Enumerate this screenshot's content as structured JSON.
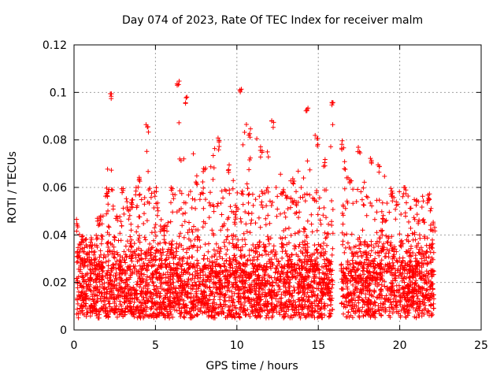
{
  "chart_data": {
    "type": "scatter",
    "title": "Day 074 of 2023, Rate Of TEC Index for receiver malm",
    "xlabel": "GPS time / hours",
    "ylabel": "ROTI / TECUs",
    "xlim": [
      0,
      25
    ],
    "ylim": [
      0,
      0.12
    ],
    "x_ticks": [
      "0",
      "5",
      "10",
      "15",
      "20",
      "25"
    ],
    "y_ticks": [
      "0",
      "0.02",
      "0.04",
      "0.06",
      "0.08",
      "0.1",
      "0.12"
    ],
    "grid": true,
    "marker": "+",
    "color": "#ff0000",
    "data_gap_hours": [
      15.9,
      16.4
    ],
    "envelope": [
      {
        "x": 0.2,
        "y": 0.047
      },
      {
        "x": 0.5,
        "y": 0.04
      },
      {
        "x": 1.0,
        "y": 0.039
      },
      {
        "x": 1.5,
        "y": 0.047
      },
      {
        "x": 2.0,
        "y": 0.06
      },
      {
        "x": 2.3,
        "y": 0.1
      },
      {
        "x": 2.6,
        "y": 0.05
      },
      {
        "x": 3.0,
        "y": 0.06
      },
      {
        "x": 3.5,
        "y": 0.055
      },
      {
        "x": 4.0,
        "y": 0.065
      },
      {
        "x": 4.5,
        "y": 0.087
      },
      {
        "x": 5.0,
        "y": 0.06
      },
      {
        "x": 5.5,
        "y": 0.045
      },
      {
        "x": 6.0,
        "y": 0.06
      },
      {
        "x": 6.4,
        "y": 0.106
      },
      {
        "x": 6.9,
        "y": 0.099
      },
      {
        "x": 7.5,
        "y": 0.065
      },
      {
        "x": 8.0,
        "y": 0.07
      },
      {
        "x": 8.9,
        "y": 0.081
      },
      {
        "x": 9.5,
        "y": 0.07
      },
      {
        "x": 10.2,
        "y": 0.104
      },
      {
        "x": 10.8,
        "y": 0.085
      },
      {
        "x": 11.5,
        "y": 0.078
      },
      {
        "x": 12.2,
        "y": 0.089
      },
      {
        "x": 12.8,
        "y": 0.06
      },
      {
        "x": 13.5,
        "y": 0.065
      },
      {
        "x": 14.3,
        "y": 0.096
      },
      {
        "x": 14.9,
        "y": 0.081
      },
      {
        "x": 15.4,
        "y": 0.072
      },
      {
        "x": 15.9,
        "y": 0.097
      },
      {
        "x": 16.5,
        "y": 0.08
      },
      {
        "x": 17.0,
        "y": 0.065
      },
      {
        "x": 17.5,
        "y": 0.077
      },
      {
        "x": 18.2,
        "y": 0.074
      },
      {
        "x": 18.7,
        "y": 0.07
      },
      {
        "x": 19.5,
        "y": 0.06
      },
      {
        "x": 20.3,
        "y": 0.06
      },
      {
        "x": 21.0,
        "y": 0.055
      },
      {
        "x": 21.8,
        "y": 0.058
      },
      {
        "x": 22.1,
        "y": 0.045
      }
    ],
    "baseline_range": [
      0.005,
      0.04
    ],
    "x_range_data": [
      0.15,
      22.1
    ]
  }
}
